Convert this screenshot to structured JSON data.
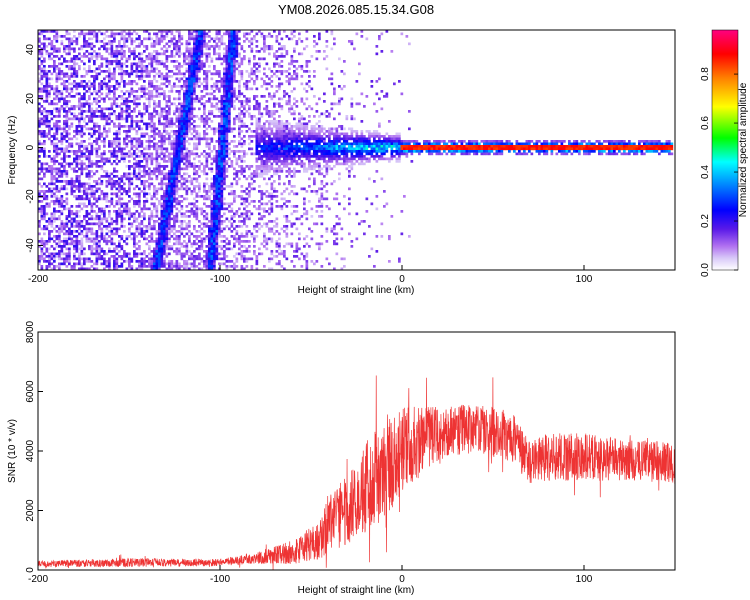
{
  "title": "YM08.2026.085.15.34.G08",
  "colors": {
    "snr_line": "#ee3333",
    "spectrum_background": "#ffffff",
    "bright_track": "#ff0000"
  },
  "colorbar": {
    "label": "Normalized spectral amplitude",
    "range": [
      0,
      0.98
    ],
    "ticks": [
      0.0,
      0.2,
      0.4,
      0.6,
      0.8
    ],
    "tick_labels": [
      "0.0",
      "0.2",
      "0.4",
      "0.6",
      "0.8"
    ]
  },
  "chart_data": [
    {
      "type": "heatmap",
      "xlabel": "Height of straight line (km)",
      "ylabel": "Frequency (Hz)",
      "xlim": [
        -200,
        150
      ],
      "ylim": [
        -50,
        48
      ],
      "xticks": [
        -200,
        -100,
        0,
        100
      ],
      "xtick_labels": [
        "-200",
        "-100",
        "0",
        "100"
      ],
      "yticks": [
        -40,
        -20,
        0,
        20,
        40
      ],
      "ytick_labels": [
        "-40",
        "-20",
        "0",
        "20",
        "40"
      ],
      "features": {
        "noise_region_x": [
          -200,
          -20
        ],
        "tracks": [
          {
            "x": [
              -135,
              -110
            ],
            "y": [
              -50,
              48
            ]
          },
          {
            "x": [
              -105,
              -92
            ],
            "y": [
              -50,
              48
            ]
          }
        ],
        "signal_band_y": 0,
        "signal_start_x": -80,
        "strong_signal_start_x": 0
      }
    },
    {
      "type": "line",
      "xlabel": "Height of straight line (km)",
      "ylabel": "SNR (10 * v/v)",
      "xlim": [
        -200,
        150
      ],
      "ylim": [
        0,
        8000
      ],
      "xticks": [
        -200,
        -100,
        0,
        100
      ],
      "xtick_labels": [
        "-200",
        "-100",
        "0",
        "100"
      ],
      "yticks": [
        0,
        2000,
        4000,
        6000,
        8000
      ],
      "ytick_labels": [
        "0",
        "2000",
        "4000",
        "6000",
        "8000"
      ],
      "envelope": {
        "x": [
          -200,
          -150,
          -100,
          -80,
          -60,
          -45,
          -40,
          -30,
          -20,
          -10,
          0,
          20,
          40,
          60,
          70,
          80,
          100,
          120,
          150
        ],
        "mean": [
          200,
          250,
          250,
          400,
          600,
          1000,
          1600,
          2000,
          2800,
          3300,
          4000,
          4600,
          4800,
          4500,
          3600,
          3800,
          3800,
          3700,
          3600
        ],
        "spread": [
          100,
          150,
          120,
          200,
          400,
          700,
          1000,
          1200,
          1600,
          1600,
          1500,
          900,
          800,
          900,
          700,
          800,
          800,
          700,
          700
        ]
      }
    }
  ]
}
